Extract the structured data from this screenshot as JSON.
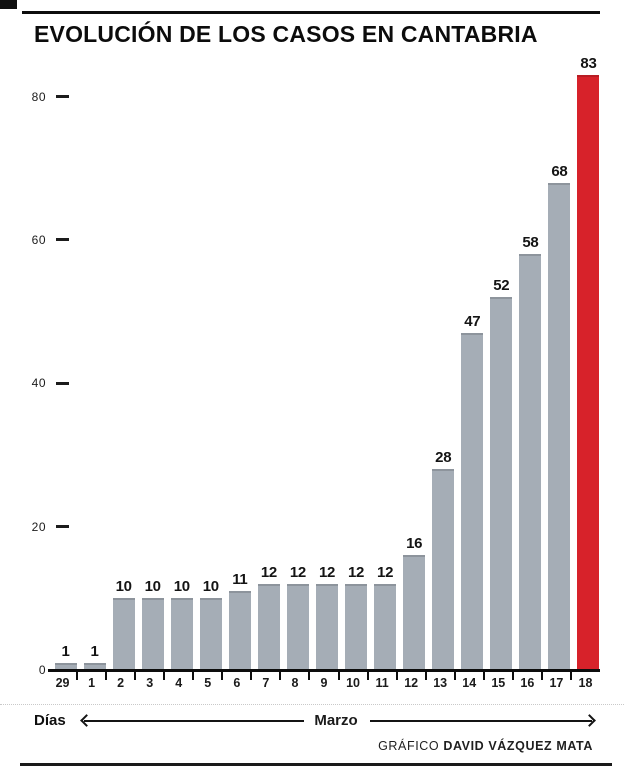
{
  "chart_data": {
    "type": "bar",
    "title": "EVOLUCIÓN DE LOS CASOS EN CANTABRIA",
    "categories": [
      "29",
      "1",
      "2",
      "3",
      "4",
      "5",
      "6",
      "7",
      "8",
      "9",
      "10",
      "11",
      "12",
      "13",
      "14",
      "15",
      "16",
      "17",
      "18"
    ],
    "values": [
      1,
      1,
      10,
      10,
      10,
      10,
      11,
      12,
      12,
      12,
      12,
      12,
      16,
      28,
      47,
      52,
      58,
      68,
      83
    ],
    "y_ticks": [
      0,
      20,
      40,
      60,
      80
    ],
    "ylim": [
      0,
      85
    ],
    "xlabel": "Días",
    "x_period_label": "Marzo",
    "ylabel": "",
    "grid": false,
    "legend": false,
    "bar_color": "#a5adb6",
    "highlight_color": "#d7222a",
    "highlight_index": 18,
    "data_labels": true
  },
  "axis_row": {
    "left_label": "Días",
    "center_label": "Marzo"
  },
  "credit": {
    "prefix": "GRÁFICO ",
    "author": "DAVID VÁZQUEZ MATA"
  }
}
